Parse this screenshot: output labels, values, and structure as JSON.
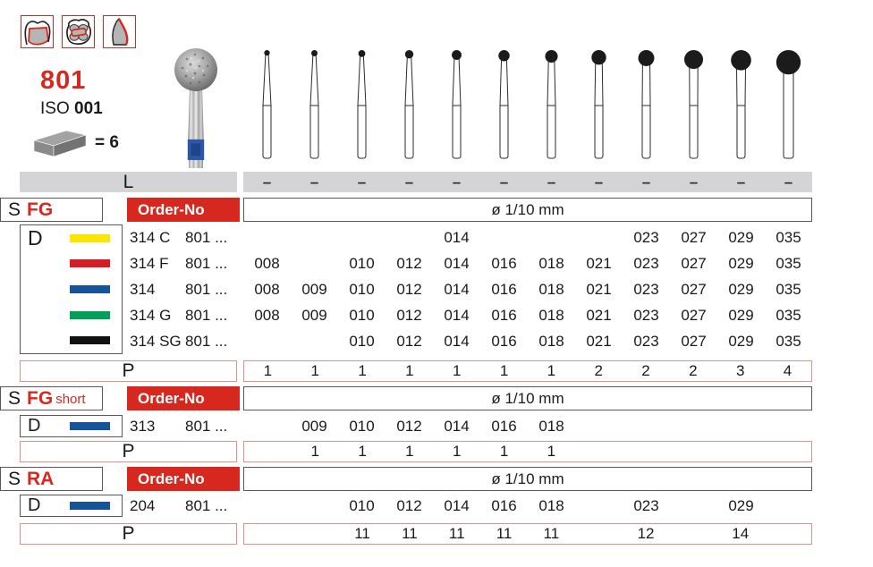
{
  "colors": {
    "accent_red": "#d7281f",
    "bar_gray": "#d4d4d6",
    "box_border_gray": "#58585a",
    "p_row_border": "#dd9387"
  },
  "header": {
    "figure_number": "801",
    "iso_prefix": "ISO",
    "iso_number": "001",
    "pack_qty_label": "= 6",
    "indication_icons": [
      {
        "name": "anterior-tooth-icon"
      },
      {
        "name": "molar-occlusal-icon"
      },
      {
        "name": "tooth-profile-icon"
      }
    ]
  },
  "l_row": {
    "label": "L",
    "values": [
      "–",
      "–",
      "–",
      "–",
      "–",
      "–",
      "–",
      "–",
      "–",
      "–",
      "–",
      "–"
    ]
  },
  "bur_row": {
    "ball_codes": [
      8,
      9,
      10,
      12,
      14,
      16,
      18,
      21,
      23,
      27,
      29,
      35
    ]
  },
  "sections": {
    "fg": {
      "s_label": "S",
      "type_label": "FG",
      "type_suffix": "",
      "order_label": "Order-No",
      "diameter_header": "ø 1/10 mm",
      "d_label": "D",
      "rows": [
        {
          "swatch": "#fce500",
          "code": "314 C",
          "series": "801 ...",
          "values": [
            "",
            "",
            "",
            "",
            "014",
            "",
            "",
            "",
            "023",
            "027",
            "029",
            "035"
          ]
        },
        {
          "swatch": "#d41e24",
          "code": "314 F",
          "series": "801 ...",
          "values": [
            "008",
            "",
            "010",
            "012",
            "014",
            "016",
            "018",
            "021",
            "023",
            "027",
            "029",
            "035"
          ]
        },
        {
          "swatch": "#15549b",
          "code": "314",
          "series": "801 ...",
          "values": [
            "008",
            "009",
            "010",
            "012",
            "014",
            "016",
            "018",
            "021",
            "023",
            "027",
            "029",
            "035"
          ]
        },
        {
          "swatch": "#00a058",
          "code": "314 G",
          "series": "801 ...",
          "values": [
            "008",
            "009",
            "010",
            "012",
            "014",
            "016",
            "018",
            "021",
            "023",
            "027",
            "029",
            "035"
          ]
        },
        {
          "swatch": "#111111",
          "code": "314 SG",
          "series": "801 ...",
          "values": [
            "",
            "",
            "010",
            "012",
            "014",
            "016",
            "018",
            "021",
            "023",
            "027",
            "029",
            "035"
          ]
        }
      ],
      "p_label": "P",
      "p_values": [
        "1",
        "1",
        "1",
        "1",
        "1",
        "1",
        "1",
        "2",
        "2",
        "2",
        "3",
        "4"
      ]
    },
    "fg_short": {
      "s_label": "S",
      "type_label": "FG",
      "type_suffix": "short",
      "order_label": "Order-No",
      "diameter_header": "ø 1/10 mm",
      "d_label": "D",
      "rows": [
        {
          "swatch": "#15549b",
          "code": "313",
          "series": "801 ...",
          "values": [
            "",
            "009",
            "010",
            "012",
            "014",
            "016",
            "018",
            "",
            "",
            "",
            "",
            ""
          ]
        }
      ],
      "p_label": "P",
      "p_values": [
        "",
        "1",
        "1",
        "1",
        "1",
        "1",
        "1",
        "",
        "",
        "",
        "",
        ""
      ]
    },
    "ra": {
      "s_label": "S",
      "type_label": "RA",
      "type_suffix": "",
      "order_label": "Order-No",
      "diameter_header": "ø 1/10 mm",
      "d_label": "D",
      "rows": [
        {
          "swatch": "#15549b",
          "code": "204",
          "series": "801 ...",
          "values": [
            "",
            "",
            "010",
            "012",
            "014",
            "016",
            "018",
            "",
            "023",
            "",
            "029",
            ""
          ]
        }
      ],
      "p_label": "P",
      "p_values": [
        "",
        "",
        "11",
        "11",
        "11",
        "11",
        "11",
        "",
        "12",
        "",
        "14",
        ""
      ]
    }
  }
}
